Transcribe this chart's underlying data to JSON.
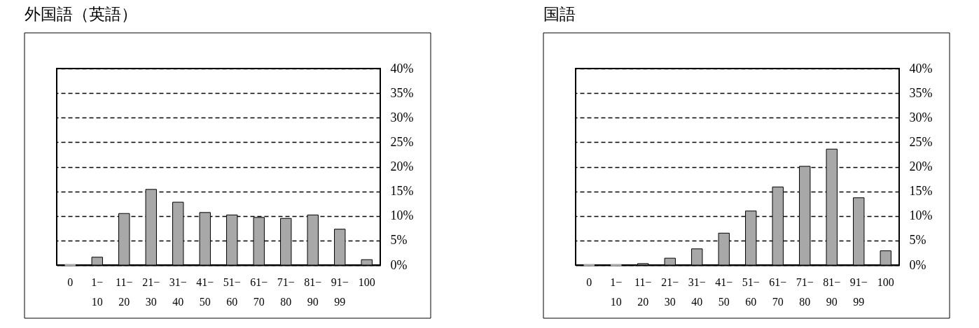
{
  "chart_data": [
    {
      "type": "bar",
      "title": "外国語（英語）",
      "categories": [
        "0",
        "1−10",
        "11−20",
        "21−30",
        "31−40",
        "41−50",
        "51−60",
        "61−70",
        "71−80",
        "81−90",
        "91−99",
        "100"
      ],
      "values": [
        0,
        1.6,
        10.5,
        15.4,
        12.8,
        10.7,
        10.2,
        9.7,
        9.5,
        10.2,
        7.3,
        1.1
      ],
      "color": "#a8a8a8",
      "ylim": [
        0,
        40
      ],
      "yticks": [
        {
          "value": 0,
          "label": "0%"
        },
        {
          "value": 5,
          "label": "5%"
        },
        {
          "value": 10,
          "label": "10%"
        },
        {
          "value": 15,
          "label": "15%"
        },
        {
          "value": 20,
          "label": "20%"
        },
        {
          "value": 25,
          "label": "25%"
        },
        {
          "value": 30,
          "label": "30%"
        },
        {
          "value": 35,
          "label": "35%"
        },
        {
          "value": 40,
          "label": "40%"
        }
      ],
      "grid": "y"
    },
    {
      "type": "bar",
      "title": "国語",
      "categories": [
        "0",
        "1−10",
        "11−20",
        "21−30",
        "31−40",
        "41−50",
        "51−60",
        "61−70",
        "71−80",
        "81−90",
        "91−99",
        "100"
      ],
      "values": [
        0,
        0,
        0.3,
        1.4,
        3.3,
        6.5,
        11.0,
        15.9,
        20.1,
        23.6,
        13.7,
        2.9
      ],
      "color": "#a8a8a8",
      "ylim": [
        0,
        40
      ],
      "yticks": [
        {
          "value": 0,
          "label": "0%"
        },
        {
          "value": 5,
          "label": "5%"
        },
        {
          "value": 10,
          "label": "10%"
        },
        {
          "value": 15,
          "label": "15%"
        },
        {
          "value": 20,
          "label": "20%"
        },
        {
          "value": 25,
          "label": "25%"
        },
        {
          "value": 30,
          "label": "30%"
        },
        {
          "value": 35,
          "label": "35%"
        },
        {
          "value": 40,
          "label": "40%"
        }
      ],
      "grid": "y"
    }
  ]
}
